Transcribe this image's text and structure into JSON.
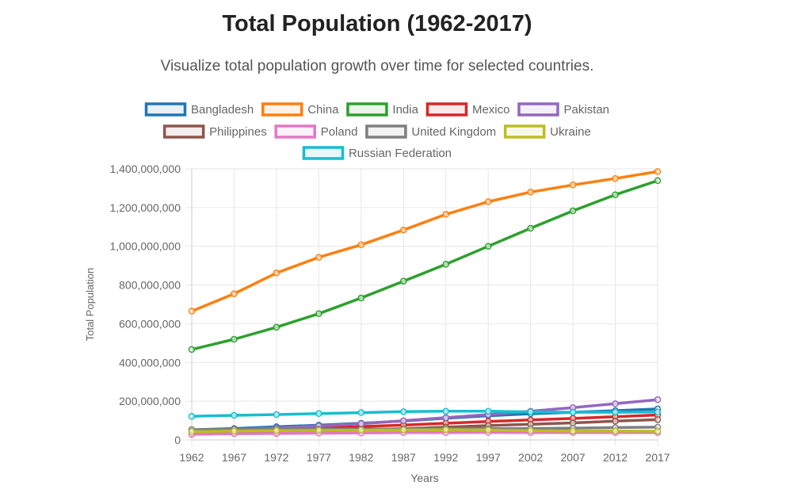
{
  "page": {
    "title": "Total Population (1962-2017)",
    "subtitle": "Visualize total population growth over time for selected countries."
  },
  "chart_data": {
    "type": "line",
    "title": "Total Population (1962-2017)",
    "xlabel": "Years",
    "ylabel": "Total Population",
    "x": [
      "1962",
      "1967",
      "1972",
      "1977",
      "1982",
      "1987",
      "1992",
      "1997",
      "2002",
      "2007",
      "2012",
      "2017"
    ],
    "ylim": [
      0,
      1400000000
    ],
    "yticks": [
      0,
      200000000,
      400000000,
      600000000,
      800000000,
      1000000000,
      1200000000,
      1400000000
    ],
    "ytick_labels": [
      "0",
      "200,000,000",
      "400,000,000",
      "600,000,000",
      "800,000,000",
      "1,000,000,000",
      "1,200,000,000",
      "1,400,000,000"
    ],
    "grid": true,
    "legend_position": "top",
    "series": [
      {
        "name": "Bangladesh",
        "color": "#1f77b4",
        "values": [
          52000000,
          59000000,
          68000000,
          76000000,
          86000000,
          98000000,
          112000000,
          125000000,
          135000000,
          143000000,
          151000000,
          160000000
        ]
      },
      {
        "name": "China",
        "color": "#ff7f0e",
        "values": [
          665000000,
          755000000,
          862000000,
          943000000,
          1008000000,
          1084000000,
          1165000000,
          1230000000,
          1280000000,
          1317000000,
          1350000000,
          1386000000
        ]
      },
      {
        "name": "India",
        "color": "#2ca02c",
        "values": [
          467000000,
          520000000,
          582000000,
          652000000,
          733000000,
          820000000,
          907000000,
          1000000000,
          1093000000,
          1183000000,
          1266000000,
          1339000000
        ]
      },
      {
        "name": "Mexico",
        "color": "#d62728",
        "values": [
          40000000,
          46000000,
          53000000,
          61000000,
          69000000,
          77000000,
          86000000,
          95000000,
          103000000,
          111000000,
          120000000,
          129000000
        ]
      },
      {
        "name": "Pakistan",
        "color": "#9467bd",
        "values": [
          47000000,
          54000000,
          62000000,
          72000000,
          84000000,
          99000000,
          115000000,
          131000000,
          148000000,
          167000000,
          187000000,
          208000000
        ]
      },
      {
        "name": "Philippines",
        "color": "#8c564b",
        "values": [
          29000000,
          34000000,
          39000000,
          45000000,
          51000000,
          58000000,
          66000000,
          74000000,
          81000000,
          88000000,
          97000000,
          105000000
        ]
      },
      {
        "name": "Poland",
        "color": "#e377c2",
        "values": [
          30000000,
          32000000,
          33000000,
          35000000,
          36000000,
          38000000,
          38000000,
          39000000,
          38000000,
          38000000,
          38000000,
          38000000
        ]
      },
      {
        "name": "United Kingdom",
        "color": "#7f7f7f",
        "values": [
          53000000,
          55000000,
          56000000,
          56000000,
          56000000,
          57000000,
          58000000,
          58000000,
          59000000,
          61000000,
          64000000,
          66000000
        ]
      },
      {
        "name": "Ukraine",
        "color": "#bcbd22",
        "values": [
          43000000,
          46000000,
          48000000,
          49000000,
          50000000,
          51000000,
          52000000,
          51000000,
          48000000,
          46000000,
          46000000,
          45000000
        ]
      },
      {
        "name": "Russian Federation",
        "color": "#17becf",
        "values": [
          122000000,
          127000000,
          131000000,
          136000000,
          141000000,
          146000000,
          148000000,
          148000000,
          145000000,
          143000000,
          143000000,
          144000000
        ]
      }
    ]
  }
}
